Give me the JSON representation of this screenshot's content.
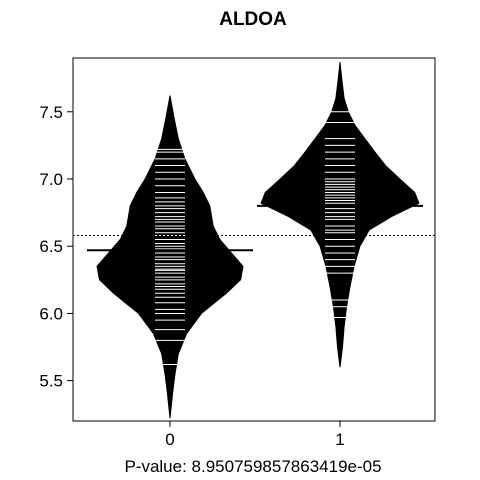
{
  "chart_data": {
    "type": "beanplot",
    "title": "ALDOA",
    "xlabel": "P-value: 8.950759857863419e-05",
    "ylabel": "",
    "ylim": [
      5.2,
      7.9
    ],
    "yticks": [
      5.5,
      6.0,
      6.5,
      7.0,
      7.5
    ],
    "categories": [
      "0",
      "1"
    ],
    "overall_mean": 6.58,
    "groups": [
      {
        "name": "0",
        "mean": 6.47,
        "range": [
          5.22,
          7.62
        ],
        "density": [
          [
            5.22,
            0.0
          ],
          [
            5.4,
            0.03
          ],
          [
            5.55,
            0.06
          ],
          [
            5.7,
            0.1
          ],
          [
            5.85,
            0.2
          ],
          [
            6.0,
            0.38
          ],
          [
            6.15,
            0.68
          ],
          [
            6.25,
            0.85
          ],
          [
            6.35,
            0.88
          ],
          [
            6.45,
            0.74
          ],
          [
            6.55,
            0.6
          ],
          [
            6.65,
            0.52
          ],
          [
            6.8,
            0.48
          ],
          [
            6.9,
            0.4
          ],
          [
            7.0,
            0.3
          ],
          [
            7.15,
            0.18
          ],
          [
            7.3,
            0.1
          ],
          [
            7.45,
            0.05
          ],
          [
            7.62,
            0.0
          ]
        ],
        "observations": [
          5.62,
          5.8,
          5.88,
          5.95,
          6.0,
          6.03,
          6.08,
          6.12,
          6.15,
          6.18,
          6.2,
          6.22,
          6.25,
          6.27,
          6.3,
          6.32,
          6.33,
          6.35,
          6.37,
          6.4,
          6.42,
          6.45,
          6.48,
          6.5,
          6.52,
          6.55,
          6.58,
          6.6,
          6.63,
          6.65,
          6.68,
          6.7,
          6.72,
          6.75,
          6.78,
          6.8,
          6.83,
          6.86,
          6.9,
          6.95,
          7.0,
          7.05,
          7.1,
          7.15,
          7.2,
          7.22
        ]
      },
      {
        "name": "1",
        "mean": 6.8,
        "range": [
          5.6,
          7.87
        ],
        "density": [
          [
            5.6,
            0.0
          ],
          [
            5.75,
            0.03
          ],
          [
            5.9,
            0.05
          ],
          [
            6.05,
            0.08
          ],
          [
            6.2,
            0.12
          ],
          [
            6.35,
            0.17
          ],
          [
            6.5,
            0.24
          ],
          [
            6.62,
            0.35
          ],
          [
            6.72,
            0.62
          ],
          [
            6.82,
            0.95
          ],
          [
            6.9,
            0.9
          ],
          [
            7.0,
            0.72
          ],
          [
            7.1,
            0.55
          ],
          [
            7.2,
            0.42
          ],
          [
            7.3,
            0.3
          ],
          [
            7.4,
            0.18
          ],
          [
            7.5,
            0.1
          ],
          [
            7.6,
            0.05
          ],
          [
            7.75,
            0.02
          ],
          [
            7.87,
            0.0
          ]
        ],
        "observations": [
          5.97,
          6.05,
          6.1,
          6.3,
          6.35,
          6.4,
          6.45,
          6.5,
          6.55,
          6.6,
          6.62,
          6.65,
          6.7,
          6.72,
          6.75,
          6.78,
          6.8,
          6.82,
          6.84,
          6.86,
          6.88,
          6.9,
          6.92,
          6.94,
          6.96,
          6.98,
          7.0,
          7.05,
          7.1,
          7.15,
          7.2,
          7.25,
          7.3,
          7.42,
          7.5
        ]
      }
    ]
  }
}
